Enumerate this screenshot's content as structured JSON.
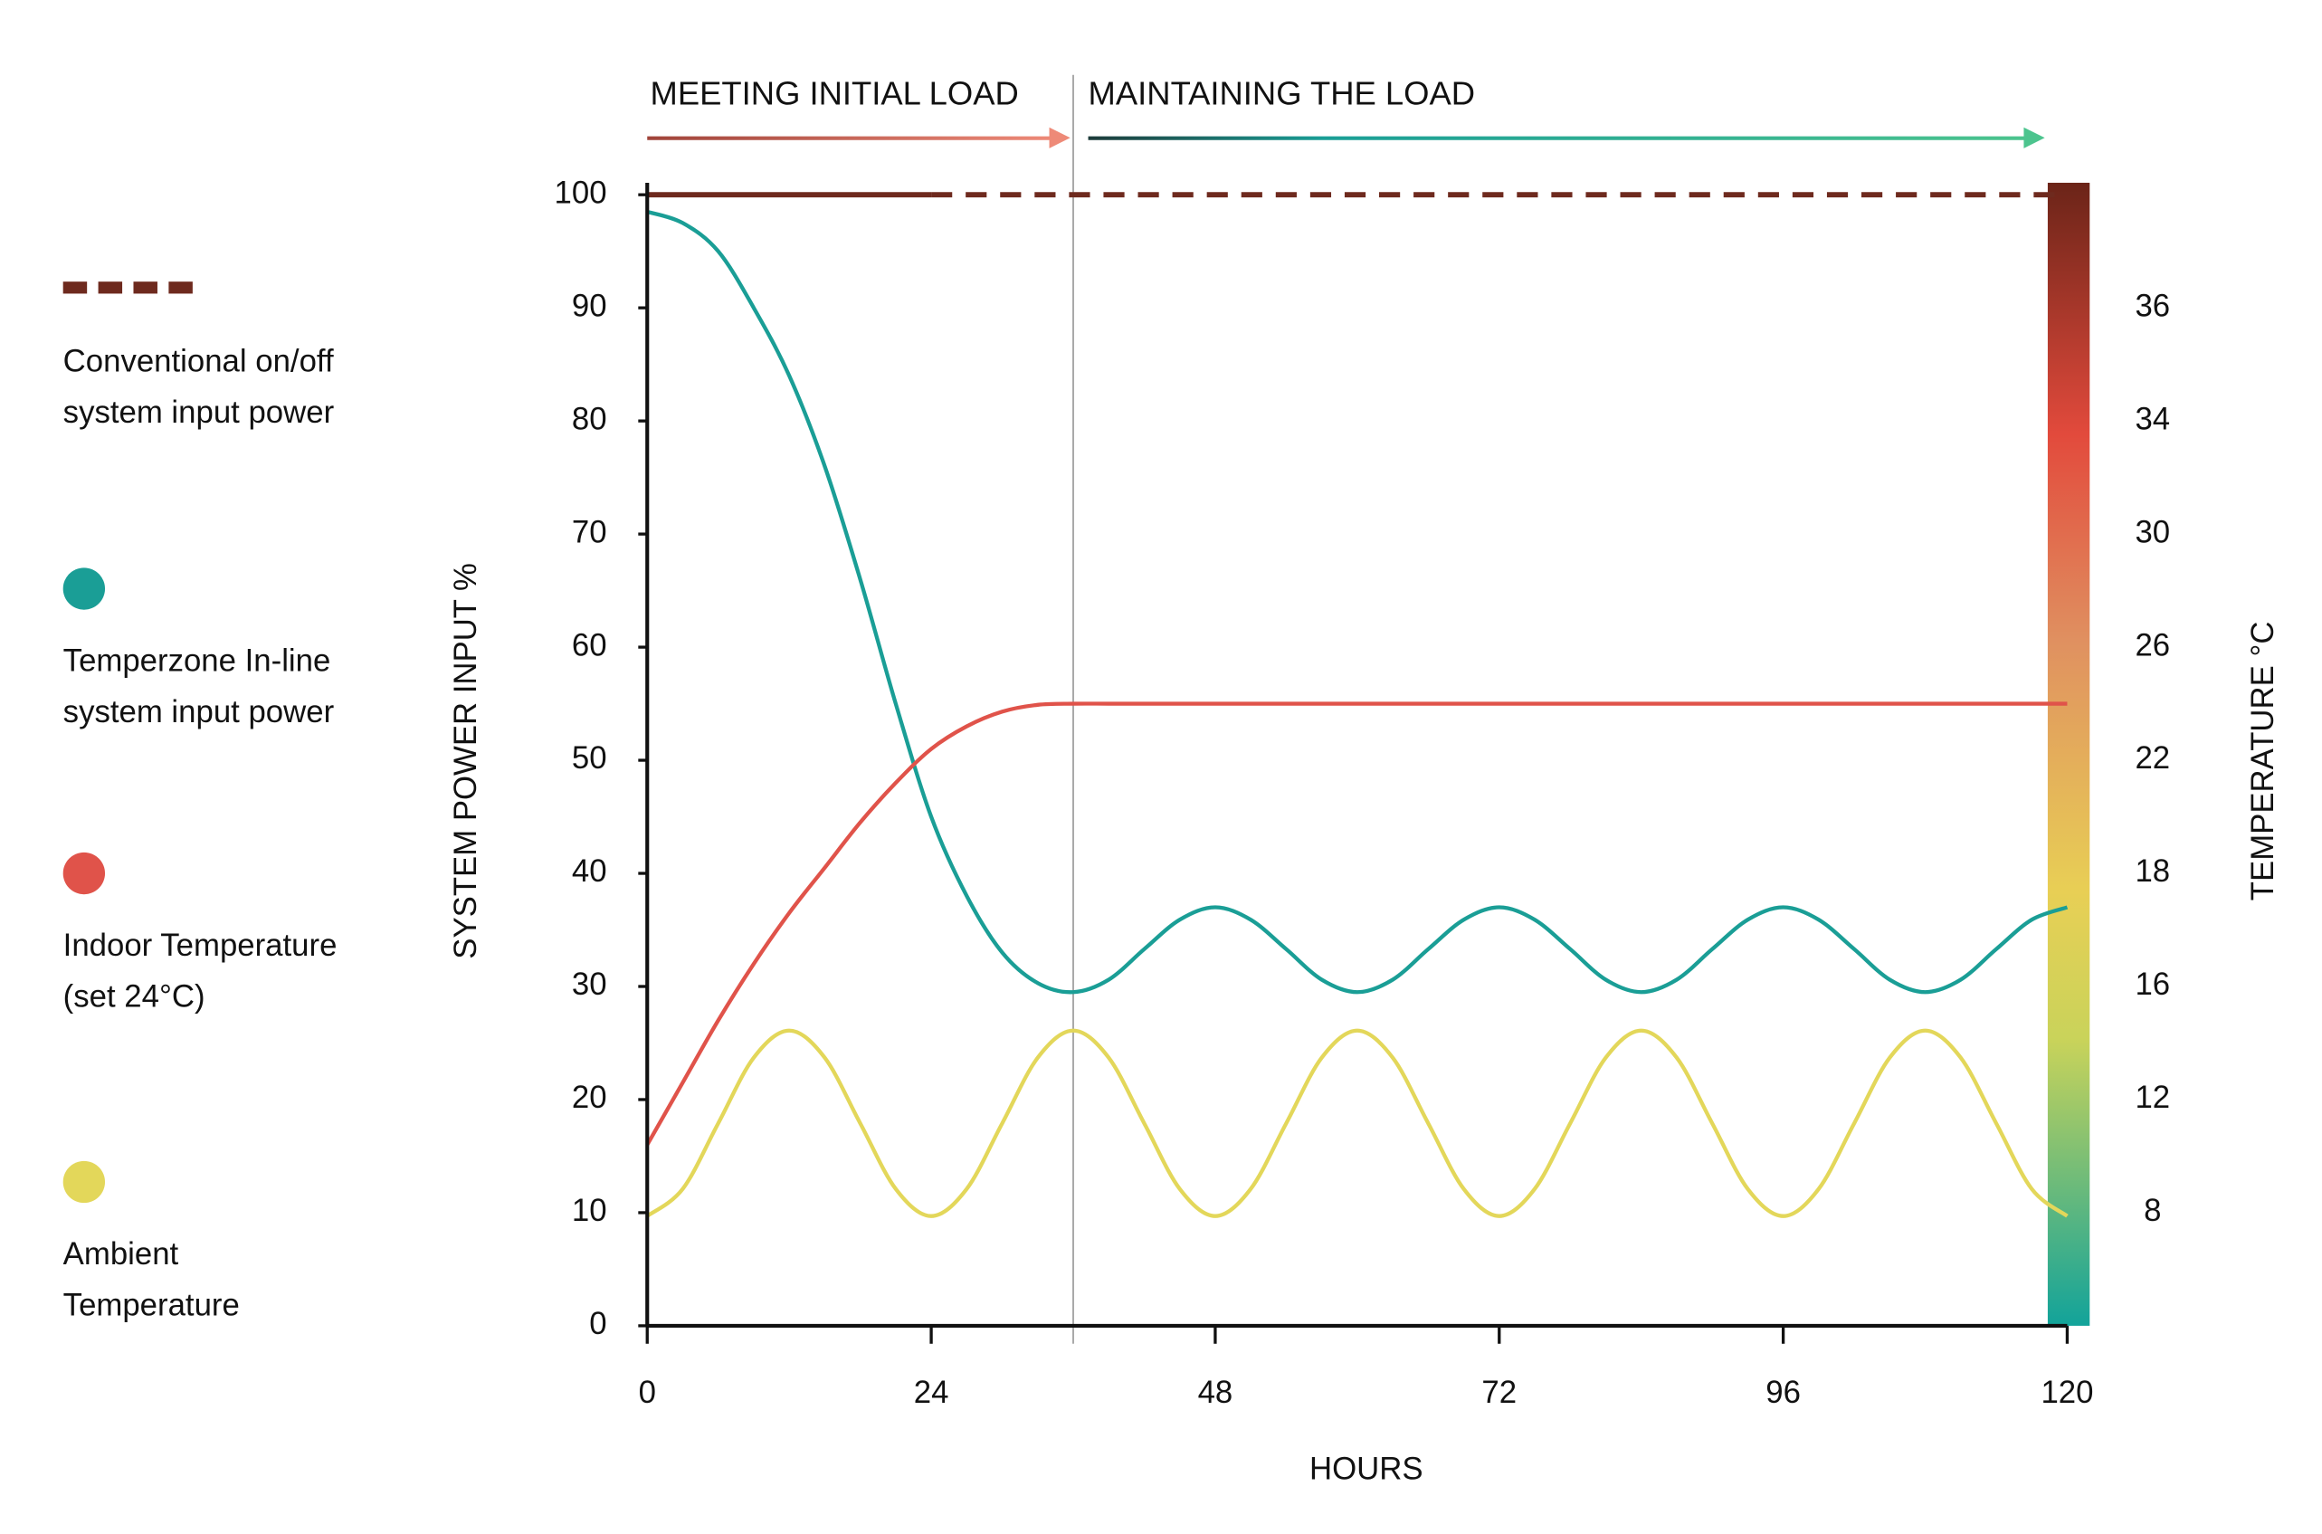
{
  "chart_data": {
    "type": "line",
    "x_label": "HOURS",
    "y_label": "SYSTEM POWER INPUT %",
    "y2_label": "TEMPERATURE °C",
    "xlim": [
      0,
      120
    ],
    "xticks": [
      0,
      24,
      48,
      72,
      96,
      120
    ],
    "ylim": [
      0,
      100
    ],
    "yticks": [
      0,
      10,
      20,
      30,
      40,
      50,
      60,
      70,
      80,
      90,
      100
    ],
    "temperature_ticks": [
      8,
      12,
      16,
      18,
      22,
      26,
      30,
      34,
      36
    ],
    "phases": [
      {
        "label": "MEETING INITIAL LOAD",
        "from": 0,
        "to": 36
      },
      {
        "label": "MAINTAINING THE LOAD",
        "from": 36,
        "to": 120
      }
    ],
    "x": [
      0,
      3,
      6,
      9,
      12,
      15,
      18,
      21,
      24,
      27,
      30,
      33,
      36,
      39,
      42,
      45,
      48,
      51,
      54,
      57,
      60,
      63,
      66,
      69,
      72,
      75,
      78,
      81,
      84,
      87,
      90,
      93,
      96,
      99,
      102,
      105,
      108,
      111,
      114,
      117,
      120
    ],
    "series": [
      {
        "name": "Conventional on/off system input power",
        "color": "#6e2a1e",
        "x": [
          0,
          24,
          120
        ],
        "values": [
          100,
          100,
          100
        ],
        "segment_styles": [
          "solid",
          "dashed"
        ]
      },
      {
        "name": "Temperzone In-line system input power",
        "color": "#1a9e96",
        "values": [
          98.5,
          97.5,
          95,
          90,
          84,
          76,
          66,
          55,
          45,
          38,
          33,
          30.3,
          29.5,
          30.6,
          33.3,
          35.9,
          37,
          35.9,
          33.3,
          30.6,
          29.5,
          30.6,
          33.3,
          35.9,
          37,
          35.9,
          33.3,
          30.6,
          29.5,
          30.6,
          33.3,
          35.9,
          37,
          35.9,
          33.3,
          30.6,
          29.5,
          30.6,
          33.3,
          35.9,
          37
        ]
      },
      {
        "name": "Indoor Temperature (set 24°C)",
        "color": "#e0534a",
        "values": [
          16,
          21.5,
          27,
          32,
          36.5,
          40.5,
          44.5,
          48,
          51,
          53,
          54.3,
          54.9,
          55,
          55,
          55,
          55,
          55,
          55,
          55,
          55,
          55,
          55,
          55,
          55,
          55,
          55,
          55,
          55,
          55,
          55,
          55,
          55,
          55,
          55,
          55,
          55,
          55,
          55,
          55,
          55,
          55
        ]
      },
      {
        "name": "Ambient Temperature",
        "color": "#e3d75a",
        "values": [
          9.7,
          12.1,
          17.9,
          23.7,
          26.1,
          23.7,
          17.9,
          12.1,
          9.7,
          12.1,
          17.9,
          23.7,
          26.1,
          23.7,
          17.9,
          12.1,
          9.7,
          12.1,
          17.9,
          23.7,
          26.1,
          23.7,
          17.9,
          12.1,
          9.7,
          12.1,
          17.9,
          23.7,
          26.1,
          23.7,
          17.9,
          12.1,
          9.7,
          12.1,
          17.9,
          23.7,
          26.1,
          23.7,
          17.9,
          12.1,
          9.7
        ]
      }
    ]
  }
}
